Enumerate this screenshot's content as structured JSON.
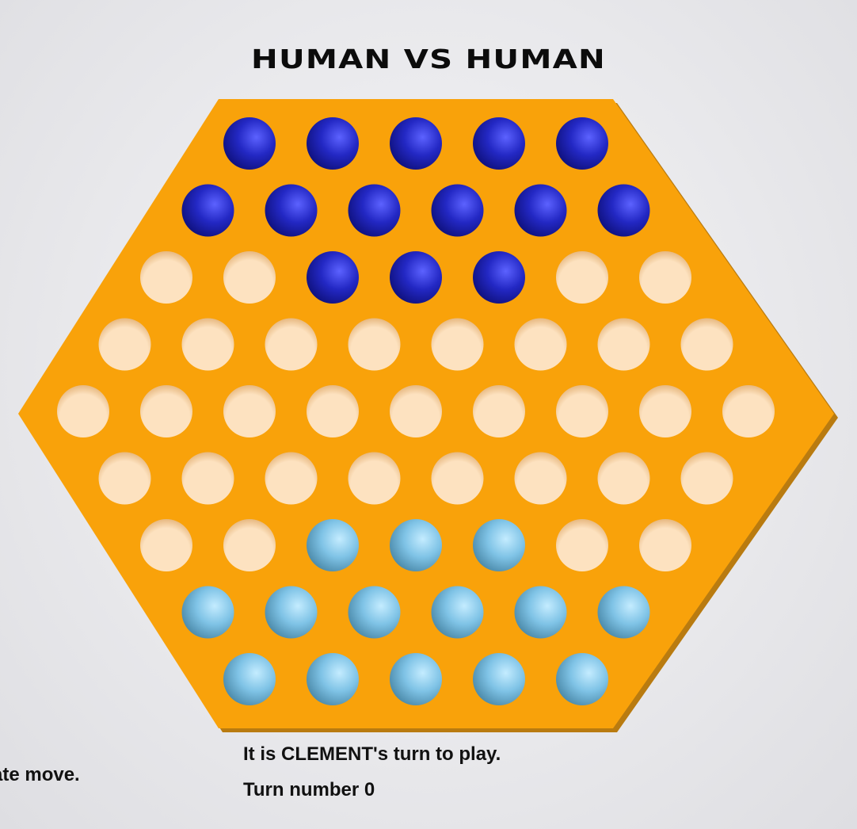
{
  "header": {
    "title": "HUMAN VS HUMAN"
  },
  "status": {
    "turn_message": "It is CLEMENT's turn to play.",
    "turn_number_text": "Turn number 0",
    "side_message": "ate move."
  },
  "board": {
    "shape": "hexagon",
    "row_lengths": [
      5,
      6,
      7,
      8,
      9,
      8,
      7,
      6,
      5
    ],
    "rows": [
      [
        "P2",
        "P2",
        "P2",
        "P2",
        "P2"
      ],
      [
        "P2",
        "P2",
        "P2",
        "P2",
        "P2",
        "P2"
      ],
      [
        "E",
        "E",
        "P2",
        "P2",
        "P2",
        "E",
        "E"
      ],
      [
        "E",
        "E",
        "E",
        "E",
        "E",
        "E",
        "E",
        "E"
      ],
      [
        "E",
        "E",
        "E",
        "E",
        "E",
        "E",
        "E",
        "E",
        "E"
      ],
      [
        "E",
        "E",
        "E",
        "E",
        "E",
        "E",
        "E",
        "E"
      ],
      [
        "E",
        "E",
        "P1",
        "P1",
        "P1",
        "E",
        "E"
      ],
      [
        "P1",
        "P1",
        "P1",
        "P1",
        "P1",
        "P1"
      ],
      [
        "P1",
        "P1",
        "P1",
        "P1",
        "P1"
      ]
    ],
    "legend": {
      "P1": "light-blue-marble",
      "P2": "dark-blue-marble",
      "E": "empty-hole"
    }
  },
  "colors": {
    "board": "#f9a20a",
    "board_shadow": "#b57810",
    "empty_hole": "#fde0bd",
    "dark_marble": "#2326b8",
    "light_marble": "#7cc6ec"
  }
}
